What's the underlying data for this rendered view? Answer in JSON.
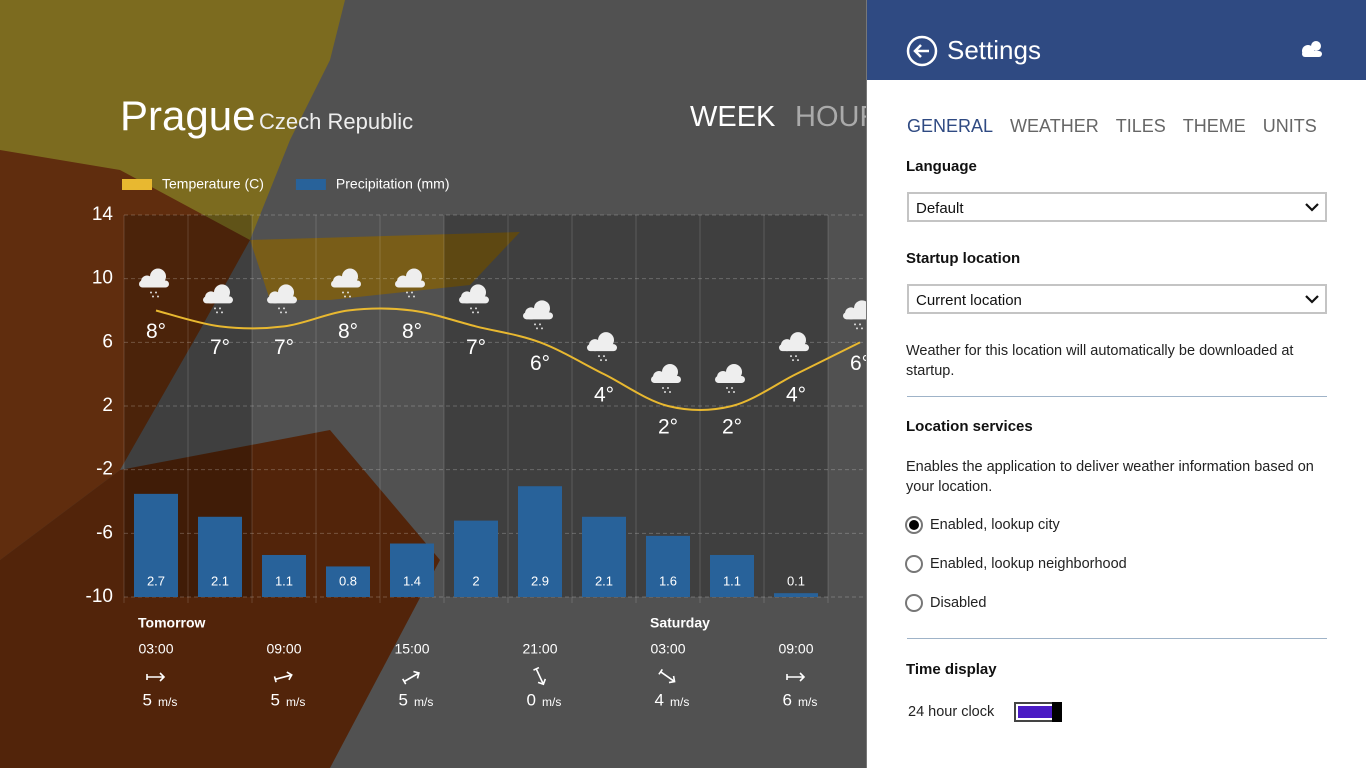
{
  "app": {
    "city": "Prague",
    "country": "Czech Republic",
    "tabs": [
      "WEEK",
      "HOUR"
    ]
  },
  "chart_data": {
    "type": "combo",
    "categories": [
      "03:00",
      null,
      "09:00",
      null,
      "15:00",
      null,
      "21:00",
      null,
      "03:00",
      null,
      "09:00",
      null
    ],
    "day_labels": [
      "Tomorrow",
      null,
      null,
      null,
      null,
      null,
      null,
      null,
      "Saturday",
      null,
      null,
      null
    ],
    "series": [
      {
        "name": "Temperature (C)",
        "type": "line",
        "color": "#e8b830",
        "values": [
          8,
          7,
          7,
          8,
          8,
          7,
          6,
          4,
          2,
          2,
          4,
          6
        ],
        "value_labels": [
          "8°",
          "7°",
          "7°",
          "8°",
          "8°",
          "7°",
          "6°",
          "4°",
          "2°",
          "2°",
          "4°",
          "6°"
        ]
      },
      {
        "name": "Precipitation (mm)",
        "type": "bar",
        "axis": "y2",
        "color": "#28629a",
        "values": [
          2.7,
          2.1,
          1.1,
          0.8,
          1.4,
          2,
          2.9,
          2.1,
          1.6,
          1.1,
          0.1,
          null
        ]
      }
    ],
    "ylim": [
      -10,
      14
    ],
    "yticks": [
      -10,
      -6,
      -2,
      2,
      6,
      10,
      14
    ],
    "y2lim": [
      0,
      10
    ],
    "grid": true,
    "wind": {
      "speeds": [
        5,
        null,
        5,
        null,
        5,
        null,
        0,
        null,
        4,
        null,
        6,
        null
      ],
      "unit": "m/s"
    }
  },
  "settings": {
    "title": "Settings",
    "tabs": [
      "GENERAL",
      "WEATHER",
      "TILES",
      "THEME",
      "UNITS"
    ],
    "active_tab": 0,
    "language": {
      "label": "Language",
      "value": "Default"
    },
    "startup": {
      "label": "Startup location",
      "value": "Current location",
      "note": "Weather for this location will automatically be downloaded at startup."
    },
    "location_services": {
      "label": "Location services",
      "note": "Enables the application to deliver weather information based on your location.",
      "options": [
        "Enabled, lookup city",
        "Enabled, lookup neighborhood",
        "Disabled"
      ],
      "selected": 0
    },
    "time_display": {
      "label": "Time display",
      "option": "24 hour clock",
      "on": true
    }
  }
}
